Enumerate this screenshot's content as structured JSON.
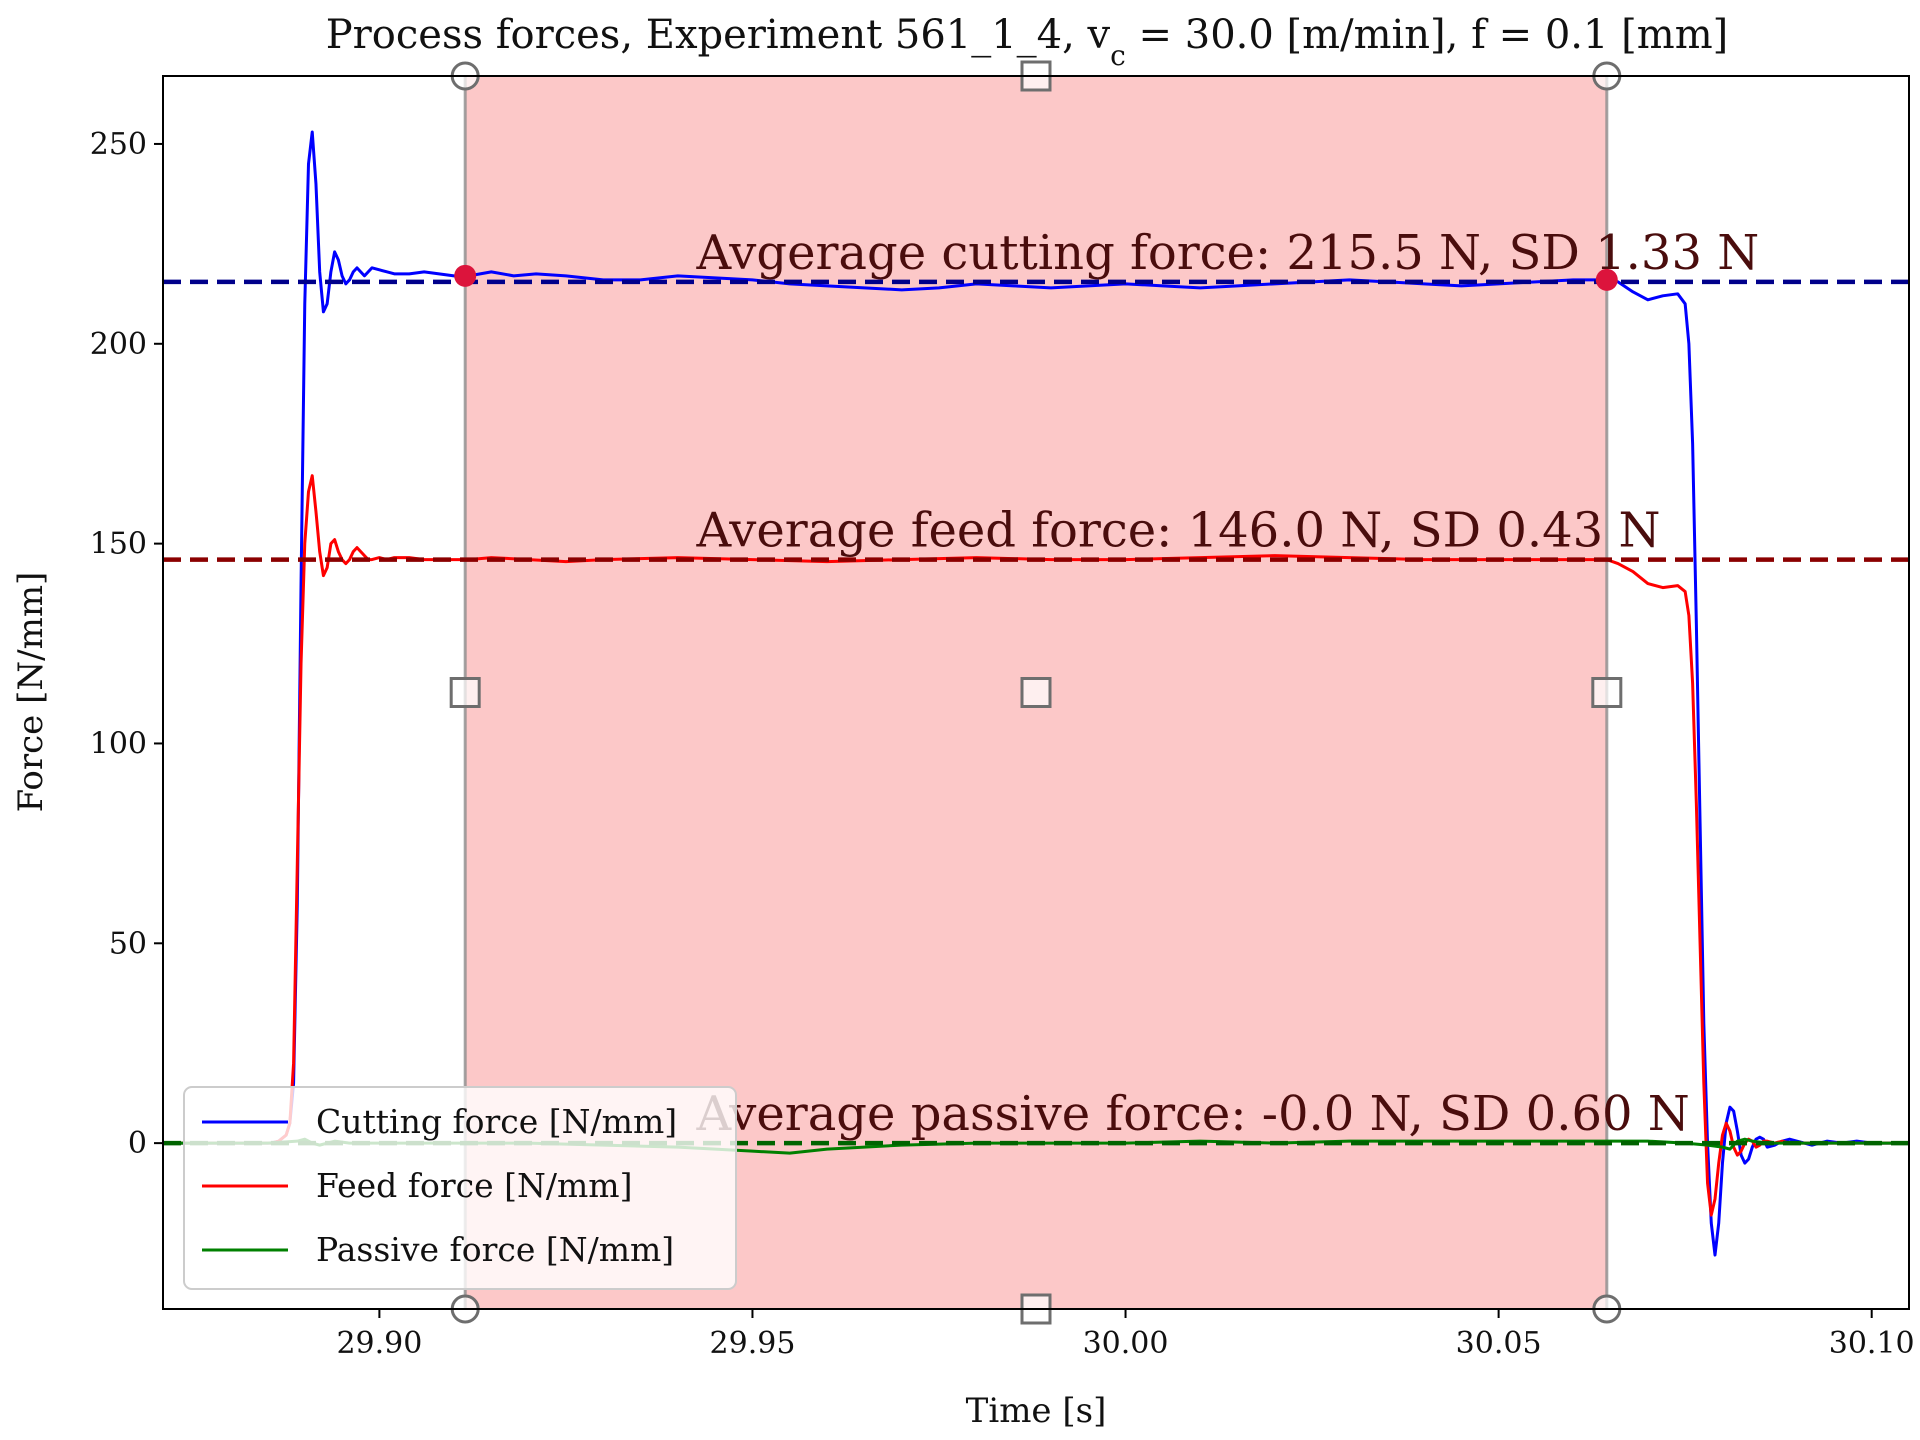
{
  "chart_data": {
    "type": "line",
    "title": "Process forces, Experiment 561_1_4, v_c = 30.0 [m/min], f = 0.1 [mm]",
    "xlabel": "Time [s]",
    "ylabel": "Force [N/mm]",
    "xlim": [
      29.871,
      30.105
    ],
    "ylim": [
      -41.5,
      267
    ],
    "xticks": [
      29.9,
      29.95,
      30.0,
      30.05,
      30.1
    ],
    "xtick_labels": [
      "29.90",
      "29.95",
      "30.00",
      "30.05",
      "30.10"
    ],
    "yticks": [
      0,
      50,
      100,
      150,
      200,
      250
    ],
    "ytick_labels": [
      "0",
      "50",
      "100",
      "150",
      "200",
      "250"
    ],
    "grid": false,
    "legend": {
      "placement": "lower-left",
      "entries": [
        "Cutting force [N/mm]",
        "Feed force [N/mm]",
        "Passive force [N/mm]"
      ]
    },
    "selection_span": {
      "x_start": 29.9115,
      "x_end": 30.0645,
      "color": "#fcc8c8"
    },
    "averages": [
      {
        "series": "Cutting force [N/mm]",
        "value": 215.5,
        "color": "#00008b",
        "label": "Avgerage cutting force: 215.5 N, SD 1.33 N"
      },
      {
        "series": "Feed force [N/mm]",
        "value": 146.0,
        "color": "#8b0000",
        "label": "Average feed force: 146.0 N, SD 0.43 N"
      },
      {
        "series": "Passive force [N/mm]",
        "value": 0.0,
        "color": "#006400",
        "label": "Average passive force: -0.0 N, SD 0.60 N"
      }
    ],
    "markers": [
      {
        "x": 29.9115,
        "y": 217.0
      },
      {
        "x": 30.0645,
        "y": 216.0
      }
    ],
    "series": [
      {
        "name": "Cutting force [N/mm]",
        "color": "#0000ff",
        "x": [
          29.871,
          29.8855,
          29.8865,
          29.8875,
          29.888,
          29.8885,
          29.889,
          29.8895,
          29.89,
          29.8905,
          29.891,
          29.8915,
          29.892,
          29.8925,
          29.893,
          29.8935,
          29.894,
          29.8945,
          29.895,
          29.8955,
          29.896,
          29.8965,
          29.897,
          29.8975,
          29.898,
          29.8985,
          29.899,
          29.9,
          29.901,
          29.902,
          29.904,
          29.906,
          29.908,
          29.91,
          29.912,
          29.915,
          29.918,
          29.921,
          29.925,
          29.93,
          29.935,
          29.94,
          29.945,
          29.95,
          29.955,
          29.96,
          29.965,
          29.97,
          29.975,
          29.98,
          29.985,
          29.99,
          29.995,
          30.0,
          30.005,
          30.01,
          30.015,
          30.02,
          30.025,
          30.03,
          30.035,
          30.04,
          30.045,
          30.05,
          30.055,
          30.06,
          30.0645,
          30.066,
          30.068,
          30.07,
          30.072,
          30.074,
          30.075,
          30.0755,
          30.076,
          30.0765,
          30.077,
          30.0775,
          30.078,
          30.0785,
          30.079,
          30.0795,
          30.08,
          30.0805,
          30.081,
          30.0815,
          30.082,
          30.0825,
          30.083,
          30.0835,
          30.084,
          30.0845,
          30.085,
          30.0855,
          30.086,
          30.087,
          30.088,
          30.089,
          30.09,
          30.092,
          30.094,
          30.096,
          30.098,
          30.1,
          30.102,
          30.105
        ],
        "y": [
          0,
          0,
          0.5,
          2,
          5,
          15,
          60,
          140,
          210,
          245,
          253,
          240,
          218,
          208,
          210,
          218,
          223,
          221,
          217,
          215,
          216,
          218,
          219,
          218,
          217,
          218,
          219,
          218.5,
          218,
          217.5,
          217.5,
          218,
          217.5,
          217,
          217,
          218,
          217,
          217.5,
          217,
          216,
          216,
          217,
          216.5,
          216,
          215,
          214.5,
          214,
          213.5,
          214,
          215,
          214.5,
          214,
          214.5,
          215,
          214.5,
          214,
          214.5,
          215,
          215.5,
          216,
          215.5,
          215,
          214.5,
          215,
          215.5,
          216,
          216,
          215.5,
          213,
          211,
          212,
          212.5,
          210,
          200,
          175,
          130,
          80,
          30,
          0,
          -20,
          -28,
          -20,
          -5,
          5,
          9,
          8,
          3,
          -3,
          -5,
          -4,
          -1,
          1,
          1.5,
          1,
          -1,
          -0.5,
          0.5,
          1,
          0.5,
          -0.5,
          0.5,
          0,
          0.5,
          0,
          0,
          0
        ]
      },
      {
        "name": "Feed force [N/mm]",
        "color": "#ff0000",
        "x": [
          29.871,
          29.8855,
          29.8865,
          29.8875,
          29.888,
          29.8885,
          29.889,
          29.8895,
          29.89,
          29.8905,
          29.891,
          29.8915,
          29.892,
          29.8925,
          29.893,
          29.8935,
          29.894,
          29.8945,
          29.895,
          29.8955,
          29.896,
          29.8965,
          29.897,
          29.8975,
          29.898,
          29.8985,
          29.899,
          29.9,
          29.901,
          29.902,
          29.904,
          29.906,
          29.908,
          29.91,
          29.912,
          29.915,
          29.92,
          29.925,
          29.93,
          29.94,
          29.95,
          29.96,
          29.97,
          29.98,
          29.99,
          30.0,
          30.01,
          30.02,
          30.03,
          30.04,
          30.05,
          30.06,
          30.0645,
          30.066,
          30.068,
          30.07,
          30.072,
          30.074,
          30.075,
          30.0755,
          30.076,
          30.0765,
          30.077,
          30.0775,
          30.078,
          30.0785,
          30.079,
          30.0795,
          30.08,
          30.0805,
          30.081,
          30.0815,
          30.082,
          30.0825,
          30.083,
          30.0835,
          30.084,
          30.0845,
          30.085,
          30.0855,
          30.086,
          30.087,
          30.088,
          30.089,
          30.09,
          30.092,
          30.094,
          30.096,
          30.098,
          30.1,
          30.102,
          30.105
        ],
        "y": [
          0,
          0,
          0.5,
          2,
          5,
          20,
          70,
          120,
          150,
          163,
          167,
          158,
          148,
          142,
          144,
          150,
          151,
          148,
          146,
          145,
          146,
          148,
          149,
          148,
          147,
          146,
          146,
          146.5,
          146,
          146.5,
          146.5,
          146,
          146,
          146,
          146,
          146.5,
          146,
          145.5,
          146,
          146.5,
          146,
          145.5,
          146,
          146.5,
          146,
          146,
          146.5,
          147,
          146.5,
          146,
          146,
          146,
          146,
          145,
          143,
          140,
          139,
          139.5,
          138,
          132,
          115,
          85,
          50,
          15,
          -10,
          -18,
          -14,
          -5,
          2,
          5,
          3,
          -1,
          -3,
          -2,
          0,
          1,
          0.5,
          -1,
          -0.5,
          0.5,
          0.5,
          0,
          0.5,
          0,
          0,
          0,
          0,
          0,
          0,
          0,
          0,
          0
        ]
      },
      {
        "name": "Passive force [N/mm]",
        "color": "#008000",
        "x": [
          29.871,
          29.885,
          29.889,
          29.89,
          29.891,
          29.892,
          29.894,
          29.896,
          29.9,
          29.91,
          29.92,
          29.93,
          29.94,
          29.95,
          29.955,
          29.96,
          29.97,
          29.98,
          29.99,
          30.0,
          30.01,
          30.02,
          30.03,
          30.04,
          30.05,
          30.06,
          30.065,
          30.07,
          30.075,
          30.078,
          30.08,
          30.081,
          30.082,
          30.083,
          30.084,
          30.086,
          30.09,
          30.095,
          30.1,
          30.105
        ],
        "y": [
          0,
          0,
          0.5,
          1,
          0,
          -0.5,
          0.5,
          0,
          0,
          0,
          0,
          -0.5,
          -1,
          -2,
          -2.5,
          -1.5,
          -0.5,
          0,
          0,
          0,
          0.5,
          0,
          0.5,
          0.5,
          0.5,
          0.5,
          0.5,
          0.5,
          0,
          -0.5,
          -1,
          -1.5,
          0.5,
          1,
          0.5,
          0,
          0,
          0,
          0,
          0
        ]
      }
    ]
  }
}
